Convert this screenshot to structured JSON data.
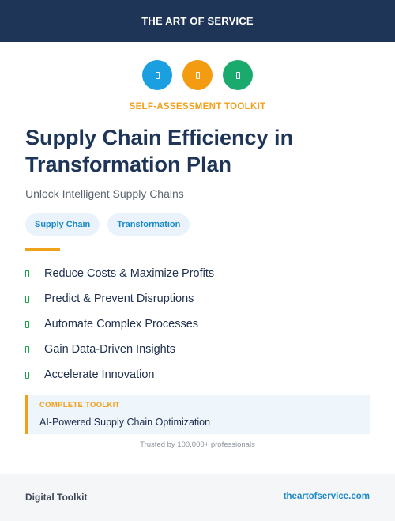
{
  "header": {
    "title": "THE ART OF SERVICE"
  },
  "icons": [
    {
      "name": "document-icon",
      "color": "#1a9fe0"
    },
    {
      "name": "document-icon",
      "color": "#f39c12"
    },
    {
      "name": "document-icon",
      "color": "#1aaa6e"
    }
  ],
  "kicker": "SELF-ASSESSMENT TOOLKIT",
  "title": "Supply Chain Efficiency in Transformation Plan",
  "subtitle": "Unlock Intelligent Supply Chains",
  "tags": [
    "Supply Chain",
    "Transformation"
  ],
  "accent_color": "#f0a11c",
  "check_color": "#16a34a",
  "benefits": [
    "Reduce Costs & Maximize Profits",
    "Predict & Prevent Disruptions",
    "Automate Complex Processes",
    "Gain Data-Driven Insights",
    "Accelerate Innovation"
  ],
  "callout": {
    "label": "COMPLETE TOOLKIT",
    "text": "AI-Powered Supply Chain Optimization"
  },
  "trusted": "Trusted by 100,000+ professionals",
  "footer": {
    "left": "Digital Toolkit",
    "right": "theartofservice.com"
  }
}
